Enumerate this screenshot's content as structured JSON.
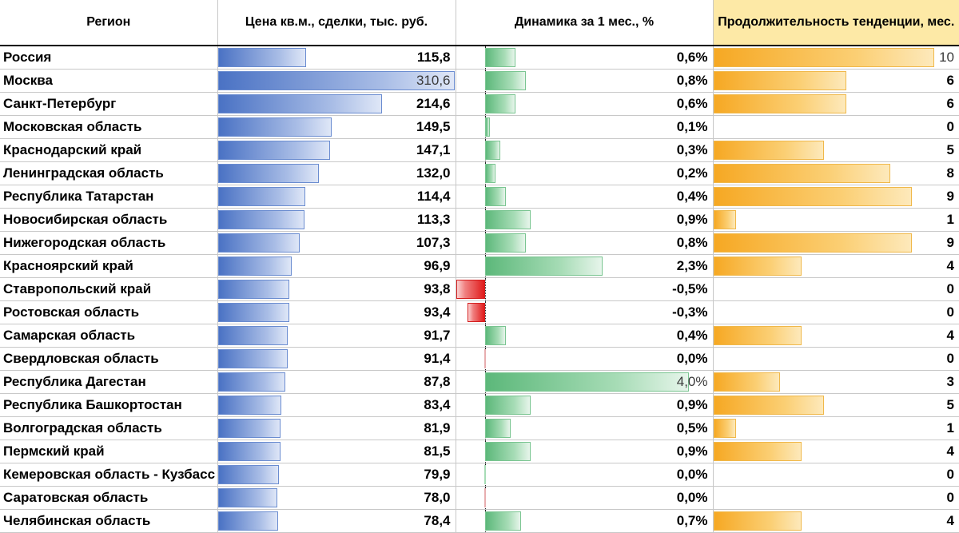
{
  "colors": {
    "price_bar": "#4a72c4",
    "change_pos_bar": "#5cb87a",
    "change_neg_bar": "#e01b1b",
    "trend_bar": "#f6a823",
    "trend_header_bg": "#fde9a6"
  },
  "headers": {
    "region": "Регион",
    "price": "Цена кв.м., сделки, тыс. руб.",
    "change": "Динамика за 1 мес., %",
    "trend": "Продолжительность тенденции, мес."
  },
  "chart_data": {
    "type": "table",
    "columns": [
      "Регион",
      "Цена кв.м., сделки, тыс. руб.",
      "Динамика за 1 мес., %",
      "Продолжительность тенденции, мес."
    ],
    "price_range": [
      0,
      310.6
    ],
    "change_range": [
      -0.6,
      4.0
    ],
    "trend_range": [
      0,
      10
    ],
    "rows": [
      {
        "region": "Россия",
        "price": 115.8,
        "price_label": "115,8",
        "change": 0.6,
        "change_label": "0,6%",
        "trend": 10,
        "trend_label": "10"
      },
      {
        "region": "Москва",
        "price": 310.6,
        "price_label": "310,6",
        "change": 0.8,
        "change_label": "0,8%",
        "trend": 6,
        "trend_label": "6"
      },
      {
        "region": "Санкт-Петербург",
        "price": 214.6,
        "price_label": "214,6",
        "change": 0.6,
        "change_label": "0,6%",
        "trend": 6,
        "trend_label": "6"
      },
      {
        "region": "Московская область",
        "price": 149.5,
        "price_label": "149,5",
        "change": 0.1,
        "change_label": "0,1%",
        "trend": 0,
        "trend_label": "0"
      },
      {
        "region": "Краснодарский край",
        "price": 147.1,
        "price_label": "147,1",
        "change": 0.3,
        "change_label": "0,3%",
        "trend": 5,
        "trend_label": "5"
      },
      {
        "region": "Ленинградская область",
        "price": 132.0,
        "price_label": "132,0",
        "change": 0.2,
        "change_label": "0,2%",
        "trend": 8,
        "trend_label": "8"
      },
      {
        "region": "Республика Татарстан",
        "price": 114.4,
        "price_label": "114,4",
        "change": 0.4,
        "change_label": "0,4%",
        "trend": 9,
        "trend_label": "9"
      },
      {
        "region": "Новосибирская область",
        "price": 113.3,
        "price_label": "113,3",
        "change": 0.9,
        "change_label": "0,9%",
        "trend": 1,
        "trend_label": "1"
      },
      {
        "region": "Нижегородская область",
        "price": 107.3,
        "price_label": "107,3",
        "change": 0.8,
        "change_label": "0,8%",
        "trend": 9,
        "trend_label": "9"
      },
      {
        "region": "Красноярский край",
        "price": 96.9,
        "price_label": "96,9",
        "change": 2.3,
        "change_label": "2,3%",
        "trend": 4,
        "trend_label": "4"
      },
      {
        "region": "Ставропольский край",
        "price": 93.8,
        "price_label": "93,8",
        "change": -0.5,
        "change_label": "-0,5%",
        "trend": 0,
        "trend_label": "0"
      },
      {
        "region": "Ростовская область",
        "price": 93.4,
        "price_label": "93,4",
        "change": -0.3,
        "change_label": "-0,3%",
        "trend": 0,
        "trend_label": "0"
      },
      {
        "region": "Самарская область",
        "price": 91.7,
        "price_label": "91,7",
        "change": 0.4,
        "change_label": "0,4%",
        "trend": 4,
        "trend_label": "4"
      },
      {
        "region": "Свердловская область",
        "price": 91.4,
        "price_label": "91,4",
        "change": -0.01,
        "change_label": "0,0%",
        "trend": 0,
        "trend_label": "0"
      },
      {
        "region": "Республика Дагестан",
        "price": 87.8,
        "price_label": "87,8",
        "change": 4.0,
        "change_label": "4,0%",
        "trend": 3,
        "trend_label": "3"
      },
      {
        "region": "Республика Башкортостан",
        "price": 83.4,
        "price_label": "83,4",
        "change": 0.9,
        "change_label": "0,9%",
        "trend": 5,
        "trend_label": "5"
      },
      {
        "region": "Волгоградская область",
        "price": 81.9,
        "price_label": "81,9",
        "change": 0.5,
        "change_label": "0,5%",
        "trend": 1,
        "trend_label": "1"
      },
      {
        "region": "Пермский край",
        "price": 81.5,
        "price_label": "81,5",
        "change": 0.9,
        "change_label": "0,9%",
        "trend": 4,
        "trend_label": "4"
      },
      {
        "region": "Кемеровская область - Кузбасс",
        "price": 79.9,
        "price_label": "79,9",
        "change": 0.01,
        "change_label": "0,0%",
        "trend": 0,
        "trend_label": "0"
      },
      {
        "region": "Саратовская область",
        "price": 78.0,
        "price_label": "78,0",
        "change": -0.01,
        "change_label": "0,0%",
        "trend": 0,
        "trend_label": "0"
      },
      {
        "region": "Челябинская область",
        "price": 78.4,
        "price_label": "78,4",
        "change": 0.7,
        "change_label": "0,7%",
        "trend": 4,
        "trend_label": "4"
      }
    ]
  }
}
